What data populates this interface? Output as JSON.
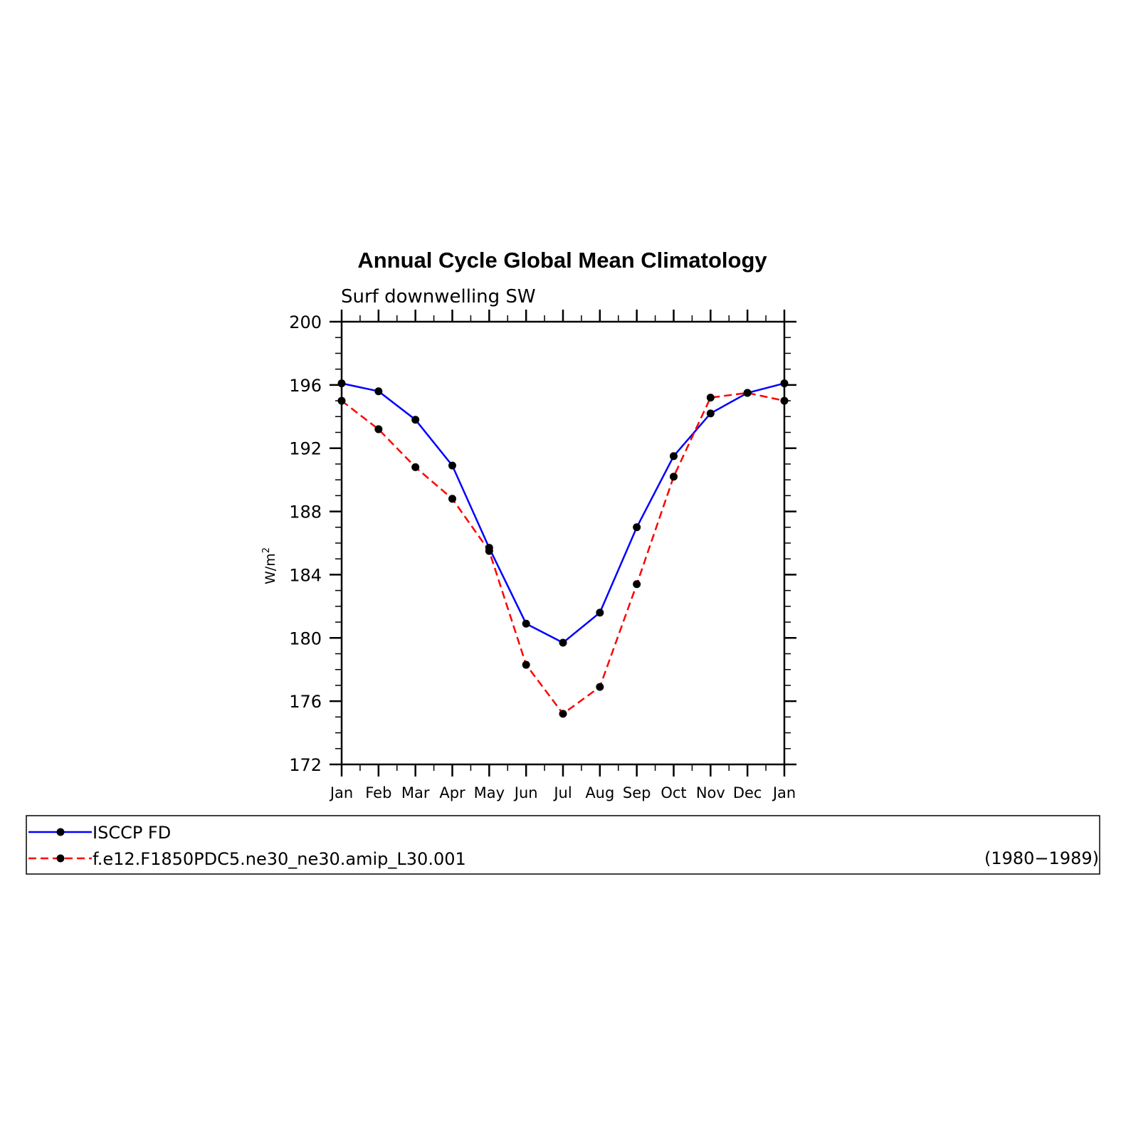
{
  "chart_data": {
    "type": "line",
    "title": "Annual Cycle Global Mean Climatology",
    "subtitle": "Surf downwelling SW",
    "ylabel": "W/m",
    "ylabel_superscript": "2",
    "xlabel": "",
    "ylim": [
      172,
      200
    ],
    "yticks": [
      "172",
      "176",
      "180",
      "184",
      "188",
      "192",
      "196",
      "200"
    ],
    "categories": [
      "Jan",
      "Feb",
      "Mar",
      "Apr",
      "May",
      "Jun",
      "Jul",
      "Aug",
      "Sep",
      "Oct",
      "Nov",
      "Dec",
      "Jan"
    ],
    "grid": false,
    "legend_position": "bottom",
    "series": [
      {
        "name": "ISCCP FD",
        "color": "#0000ff",
        "dashed": false,
        "values": [
          196.1,
          195.6,
          193.8,
          190.9,
          185.7,
          180.9,
          179.7,
          181.6,
          187.0,
          191.5,
          194.2,
          195.5,
          196.1
        ]
      },
      {
        "name": "f.e12.F1850PDC5.ne30_ne30.amip_L30.001",
        "color": "#ff0000",
        "dashed": true,
        "values": [
          195.0,
          193.2,
          190.8,
          188.8,
          185.5,
          178.3,
          175.2,
          176.9,
          183.4,
          190.2,
          195.2,
          195.5,
          195.0
        ]
      }
    ],
    "legend_note": "(1980−1989)",
    "marker_color": "#000000"
  }
}
